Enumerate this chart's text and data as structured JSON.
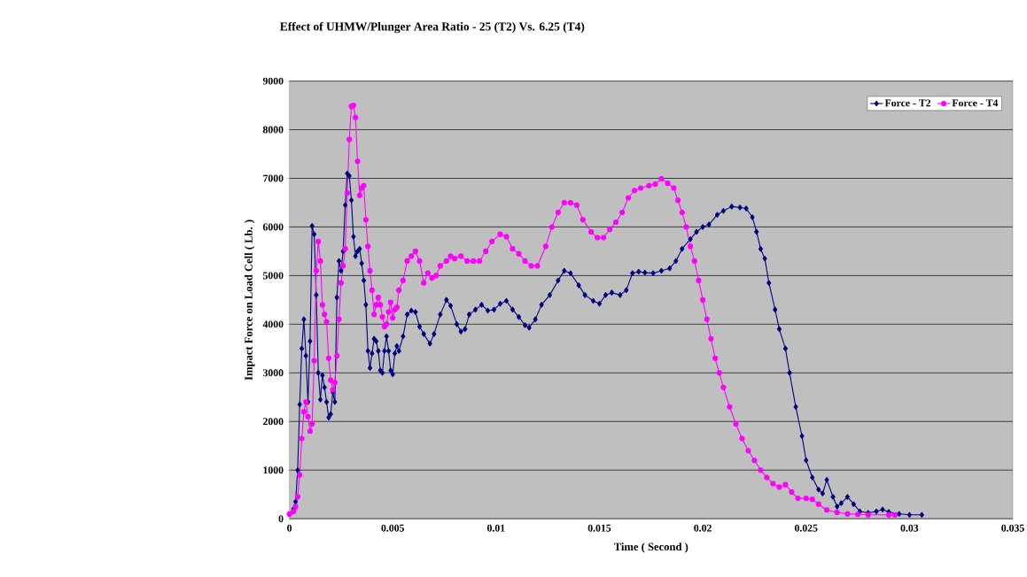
{
  "chart_data": {
    "type": "line",
    "title": "Effect of UHMW/Plunger Area Ratio - 25 (T2) Vs. 6.25 (T4)",
    "xlabel": "Time ( Second )",
    "ylabel": "Impact Force on Load Cell ( Lb. )",
    "xlim": [
      0,
      0.035
    ],
    "xticks": [
      0,
      0.005,
      0.01,
      0.015,
      0.02,
      0.025,
      0.03,
      0.035
    ],
    "ylim": [
      0,
      9000
    ],
    "yticks": [
      0,
      1000,
      2000,
      3000,
      4000,
      5000,
      6000,
      7000,
      8000,
      9000
    ],
    "grid": "y",
    "legend": "top right",
    "series": [
      {
        "name": "Force - T2",
        "color": "#000080",
        "marker": "diamond",
        "x": [
          0,
          0.0002,
          0.0003,
          0.0004,
          0.0005,
          0.0006,
          0.0007,
          0.0008,
          0.0009,
          0.001,
          0.0011,
          0.0012,
          0.0013,
          0.0014,
          0.0015,
          0.0016,
          0.0017,
          0.0018,
          0.0019,
          0.002,
          0.0021,
          0.0022,
          0.0023,
          0.0024,
          0.0025,
          0.0026,
          0.0027,
          0.0028,
          0.0029,
          0.003,
          0.0031,
          0.0032,
          0.0033,
          0.0034,
          0.0035,
          0.0036,
          0.0037,
          0.0038,
          0.0039,
          0.004,
          0.0041,
          0.0042,
          0.0043,
          0.0044,
          0.0045,
          0.0046,
          0.0047,
          0.0048,
          0.0049,
          0.005,
          0.0051,
          0.0052,
          0.0053,
          0.0055,
          0.0057,
          0.0059,
          0.0061,
          0.0063,
          0.0065,
          0.0068,
          0.007,
          0.0073,
          0.0076,
          0.0078,
          0.0081,
          0.0083,
          0.0085,
          0.0087,
          0.009,
          0.0093,
          0.0096,
          0.0099,
          0.0102,
          0.0105,
          0.0108,
          0.0111,
          0.0114,
          0.0116,
          0.0119,
          0.0122,
          0.0126,
          0.013,
          0.0133,
          0.0136,
          0.014,
          0.0143,
          0.0147,
          0.015,
          0.0153,
          0.0156,
          0.016,
          0.0163,
          0.0166,
          0.0169,
          0.0172,
          0.0176,
          0.018,
          0.0184,
          0.0187,
          0.019,
          0.0194,
          0.0197,
          0.02,
          0.0203,
          0.0207,
          0.021,
          0.0214,
          0.0218,
          0.0221,
          0.0224,
          0.0226,
          0.0228,
          0.023,
          0.0232,
          0.0235,
          0.0237,
          0.024,
          0.0242,
          0.0245,
          0.0248,
          0.025,
          0.0253,
          0.0256,
          0.0258,
          0.026,
          0.0263,
          0.0265,
          0.0267,
          0.027,
          0.0273,
          0.0276,
          0.028,
          0.0284,
          0.0287,
          0.029,
          0.0295,
          0.03,
          0.0306
        ],
        "values": [
          90,
          200,
          350,
          1000,
          2350,
          3500,
          4100,
          3350,
          2400,
          3650,
          6020,
          5850,
          4600,
          3000,
          2450,
          2950,
          2700,
          2400,
          2080,
          2150,
          2600,
          2400,
          4550,
          5300,
          5100,
          5500,
          6450,
          7100,
          7050,
          6550,
          5800,
          5400,
          5500,
          5550,
          5250,
          4900,
          4400,
          3450,
          3100,
          3400,
          3700,
          3650,
          3450,
          3050,
          3000,
          3450,
          3750,
          3450,
          3050,
          2970,
          3400,
          3550,
          3450,
          3750,
          4200,
          4280,
          4250,
          3950,
          3800,
          3600,
          3800,
          4200,
          4500,
          4380,
          4000,
          3850,
          3900,
          4200,
          4300,
          4400,
          4280,
          4300,
          4420,
          4480,
          4300,
          4150,
          3980,
          3930,
          4100,
          4400,
          4600,
          4900,
          5100,
          5050,
          4800,
          4600,
          4480,
          4420,
          4600,
          4650,
          4600,
          4700,
          5050,
          5080,
          5060,
          5050,
          5100,
          5150,
          5300,
          5550,
          5750,
          5900,
          6000,
          6050,
          6250,
          6330,
          6420,
          6400,
          6380,
          6200,
          5900,
          5550,
          5350,
          4850,
          4300,
          3900,
          3500,
          3000,
          2300,
          1700,
          1200,
          850,
          600,
          520,
          800,
          450,
          250,
          320,
          450,
          300,
          150,
          120,
          150,
          190,
          140,
          100,
          80,
          80
        ]
      },
      {
        "name": "Force - T4",
        "color": "#ff00ff",
        "marker": "circle",
        "x": [
          0,
          0.0002,
          0.0003,
          0.0004,
          0.0005,
          0.0006,
          0.0007,
          0.0008,
          0.0009,
          0.001,
          0.0011,
          0.0012,
          0.0013,
          0.0014,
          0.0015,
          0.0016,
          0.0017,
          0.0018,
          0.0019,
          0.002,
          0.0021,
          0.0022,
          0.0023,
          0.0024,
          0.0025,
          0.0026,
          0.0027,
          0.0028,
          0.0029,
          0.003,
          0.0031,
          0.0032,
          0.0033,
          0.0034,
          0.0035,
          0.0036,
          0.0037,
          0.0038,
          0.0039,
          0.004,
          0.0041,
          0.0042,
          0.0043,
          0.0044,
          0.0045,
          0.0046,
          0.0047,
          0.0048,
          0.0049,
          0.005,
          0.0051,
          0.0052,
          0.0053,
          0.0055,
          0.0057,
          0.0059,
          0.0061,
          0.0063,
          0.0065,
          0.0067,
          0.0069,
          0.0071,
          0.0073,
          0.0076,
          0.0078,
          0.008,
          0.0083,
          0.0086,
          0.0089,
          0.0092,
          0.0095,
          0.0098,
          0.0102,
          0.0105,
          0.0108,
          0.0111,
          0.0114,
          0.0117,
          0.012,
          0.0124,
          0.0127,
          0.013,
          0.0133,
          0.0136,
          0.0139,
          0.0142,
          0.0146,
          0.0149,
          0.0152,
          0.0155,
          0.0158,
          0.0161,
          0.0164,
          0.0167,
          0.017,
          0.0174,
          0.0177,
          0.018,
          0.0183,
          0.0186,
          0.0188,
          0.019,
          0.0192,
          0.0194,
          0.0196,
          0.0198,
          0.02,
          0.0202,
          0.0204,
          0.0206,
          0.0208,
          0.021,
          0.0213,
          0.0216,
          0.0219,
          0.0222,
          0.0225,
          0.0228,
          0.0231,
          0.0234,
          0.0237,
          0.024,
          0.0243,
          0.0246,
          0.025,
          0.0253,
          0.0256,
          0.026,
          0.0265,
          0.027,
          0.0275,
          0.028,
          0.029,
          0.0293
        ],
        "values": [
          100,
          150,
          250,
          450,
          900,
          1650,
          2200,
          2400,
          2100,
          1800,
          1950,
          3250,
          5100,
          5700,
          5300,
          4400,
          4200,
          4050,
          3300,
          2850,
          2650,
          2800,
          3350,
          4100,
          4850,
          5200,
          5550,
          6700,
          7800,
          8480,
          8500,
          8250,
          7350,
          6650,
          6800,
          6850,
          6150,
          5600,
          5100,
          4700,
          4200,
          4400,
          4550,
          4400,
          4150,
          3950,
          4000,
          4250,
          4450,
          4130,
          4300,
          4350,
          4700,
          4900,
          5300,
          5400,
          5500,
          5300,
          4850,
          5050,
          4950,
          5000,
          5200,
          5300,
          5400,
          5350,
          5400,
          5300,
          5300,
          5300,
          5500,
          5700,
          5850,
          5800,
          5550,
          5450,
          5300,
          5200,
          5200,
          5600,
          6000,
          6300,
          6500,
          6500,
          6450,
          6150,
          5900,
          5780,
          5780,
          5950,
          6100,
          6300,
          6600,
          6750,
          6800,
          6850,
          6880,
          6990,
          6900,
          6800,
          6550,
          6300,
          6000,
          5600,
          5300,
          4900,
          4500,
          4100,
          3700,
          3300,
          3000,
          2700,
          2300,
          1950,
          1650,
          1400,
          1200,
          1000,
          850,
          720,
          650,
          700,
          550,
          420,
          420,
          400,
          300,
          180,
          130,
          100,
          90,
          80,
          80,
          80
        ]
      }
    ]
  }
}
